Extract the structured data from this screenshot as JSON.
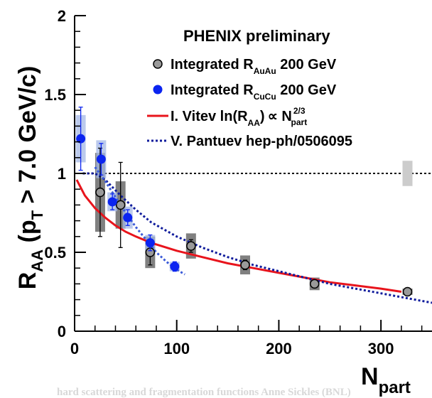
{
  "chart_data": {
    "type": "scatter",
    "title": "PHENIX preliminary",
    "ylabel": {
      "main": "R",
      "sub": "AA",
      "text1": " (p",
      "sub2": "T",
      "text2": " > 7.0 GeV/c)"
    },
    "xlabel": {
      "main": "N",
      "sub": "part"
    },
    "xlim": [
      0,
      350
    ],
    "ylim": [
      0,
      2
    ],
    "xticks": [
      0,
      100,
      200,
      300
    ],
    "xtick_labels": [
      "0",
      "100",
      "200",
      "300"
    ],
    "yticks": [
      0,
      0.5,
      1,
      1.5,
      2
    ],
    "ytick_labels": [
      "0",
      "0.5",
      "1",
      "1.5",
      "2"
    ],
    "reference_line": 1,
    "reference_syst": {
      "x": 326,
      "low": 0.92,
      "high": 1.08
    },
    "legend": [
      {
        "marker": "open-gray-circle",
        "pre": "Integrated R",
        "sub": "AuAu",
        "post": " 200 GeV"
      },
      {
        "marker": "blue-circle",
        "pre": "Integrated R",
        "sub": "CuCu",
        "post": " 200 GeV"
      },
      {
        "marker": "red-line",
        "pre": "I. Vitev  ln(R",
        "sub": "AA",
        "mid": ")",
        "prop": "∝",
        "n": " N",
        "sup": "2/3",
        "sub2": "part"
      },
      {
        "marker": "blue-dotted",
        "pre": "V. Pantuev hep-ph/0506095"
      }
    ],
    "series": [
      {
        "name": "Integrated R AuAu 200 GeV",
        "color": "#888888",
        "points": [
          {
            "x": 25,
            "y": 0.88,
            "err": 0.28,
            "syst": 0.25
          },
          {
            "x": 45,
            "y": 0.8,
            "err": 0.27,
            "syst": 0.15
          },
          {
            "x": 74,
            "y": 0.5,
            "err": 0.08,
            "syst": 0.1
          },
          {
            "x": 114,
            "y": 0.54,
            "err": 0.04,
            "syst": 0.08
          },
          {
            "x": 167,
            "y": 0.42,
            "err": 0.03,
            "syst": 0.06
          },
          {
            "x": 235,
            "y": 0.3,
            "err": 0.02,
            "syst": 0.04
          },
          {
            "x": 326,
            "y": 0.25,
            "err": 0.02,
            "syst": 0.02
          }
        ]
      },
      {
        "name": "Integrated R CuCu 200 GeV",
        "color": "#0b24f0",
        "points": [
          {
            "x": 6,
            "y": 1.22,
            "err": 0.2,
            "syst": 0.15
          },
          {
            "x": 26,
            "y": 1.09,
            "err": 0.1,
            "syst": 0.12
          },
          {
            "x": 37,
            "y": 0.82,
            "err": 0.05,
            "syst": 0.06
          },
          {
            "x": 52,
            "y": 0.72,
            "err": 0.05,
            "syst": 0.07
          },
          {
            "x": 74,
            "y": 0.56,
            "err": 0.05,
            "syst": 0.05
          },
          {
            "x": 98,
            "y": 0.41,
            "err": 0.03,
            "syst": 0.03
          }
        ]
      }
    ],
    "curves": [
      {
        "name": "I. Vitev",
        "color": "#e8141c",
        "style": "solid",
        "points": [
          [
            2,
            0.96
          ],
          [
            10,
            0.86
          ],
          [
            20,
            0.78
          ],
          [
            30,
            0.72
          ],
          [
            40,
            0.67
          ],
          [
            50,
            0.63
          ],
          [
            60,
            0.6
          ],
          [
            75,
            0.56
          ],
          [
            100,
            0.51
          ],
          [
            125,
            0.47
          ],
          [
            150,
            0.43
          ],
          [
            175,
            0.4
          ],
          [
            200,
            0.37
          ],
          [
            225,
            0.34
          ],
          [
            250,
            0.31
          ],
          [
            275,
            0.29
          ],
          [
            300,
            0.27
          ],
          [
            320,
            0.25
          ]
        ]
      },
      {
        "name": "V. Pantuev AuAu",
        "color": "#101c9c",
        "style": "dotted",
        "points": [
          [
            8,
            1.0
          ],
          [
            20,
            1.0
          ],
          [
            30,
            0.96
          ],
          [
            45,
            0.86
          ],
          [
            60,
            0.77
          ],
          [
            75,
            0.69
          ],
          [
            100,
            0.6
          ],
          [
            125,
            0.53
          ],
          [
            150,
            0.47
          ],
          [
            175,
            0.42
          ],
          [
            200,
            0.38
          ],
          [
            225,
            0.34
          ],
          [
            250,
            0.3
          ],
          [
            275,
            0.27
          ],
          [
            300,
            0.24
          ],
          [
            325,
            0.21
          ],
          [
            350,
            0.18
          ]
        ]
      },
      {
        "name": "V. Pantuev CuCu",
        "color": "#3a5ad8",
        "style": "dotted",
        "points": [
          [
            20,
            1.04
          ],
          [
            30,
            0.95
          ],
          [
            40,
            0.85
          ],
          [
            50,
            0.75
          ],
          [
            60,
            0.66
          ],
          [
            70,
            0.58
          ],
          [
            80,
            0.5
          ],
          [
            90,
            0.44
          ],
          [
            100,
            0.39
          ],
          [
            108,
            0.36
          ]
        ]
      }
    ]
  },
  "footer_text": "hard scattering and fragmentation functions Anne Sickles (BNL)"
}
